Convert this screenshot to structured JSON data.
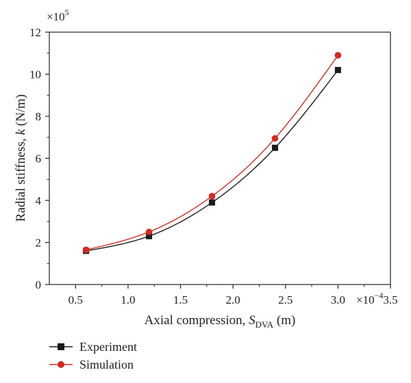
{
  "chart_data": {
    "type": "scatter",
    "xlabel": {
      "prefix": "Axial compression, ",
      "symbol": "S",
      "subscript": "DVA",
      "unit": " (m)"
    },
    "ylabel": {
      "prefix": "Radial stiffness, ",
      "symbol": "k",
      "unit": " (N/m)"
    },
    "x_multiplier": {
      "base": "×10",
      "exp": "−4"
    },
    "y_multiplier": {
      "base": "×10",
      "exp": "5"
    },
    "xlim": [
      0.25,
      3.5
    ],
    "ylim": [
      0,
      12
    ],
    "x_ticks": [
      0.5,
      1.0,
      1.5,
      2.0,
      2.5,
      3.0,
      3.5
    ],
    "x_tick_labels": [
      "0.5",
      "1.0",
      "1.5",
      "2.0",
      "2.5",
      "3.0",
      "3.5"
    ],
    "y_ticks": [
      0,
      2,
      4,
      6,
      8,
      10,
      12
    ],
    "y_tick_labels": [
      "0",
      "2",
      "4",
      "6",
      "8",
      "10",
      "12"
    ],
    "grid": false,
    "legend_position": "bottom-left, below plot",
    "series": [
      {
        "name": "Experiment",
        "marker": "square",
        "color": "#1a1a1a",
        "x": [
          0.6,
          1.2,
          1.8,
          2.4,
          3.0
        ],
        "y": [
          1.6,
          2.3,
          3.9,
          6.5,
          10.2
        ]
      },
      {
        "name": "Simulation",
        "marker": "circle",
        "color": "#d42a1e",
        "x": [
          0.6,
          1.2,
          1.8,
          2.4,
          3.0
        ],
        "y": [
          1.65,
          2.5,
          4.2,
          6.95,
          10.9
        ]
      }
    ]
  }
}
